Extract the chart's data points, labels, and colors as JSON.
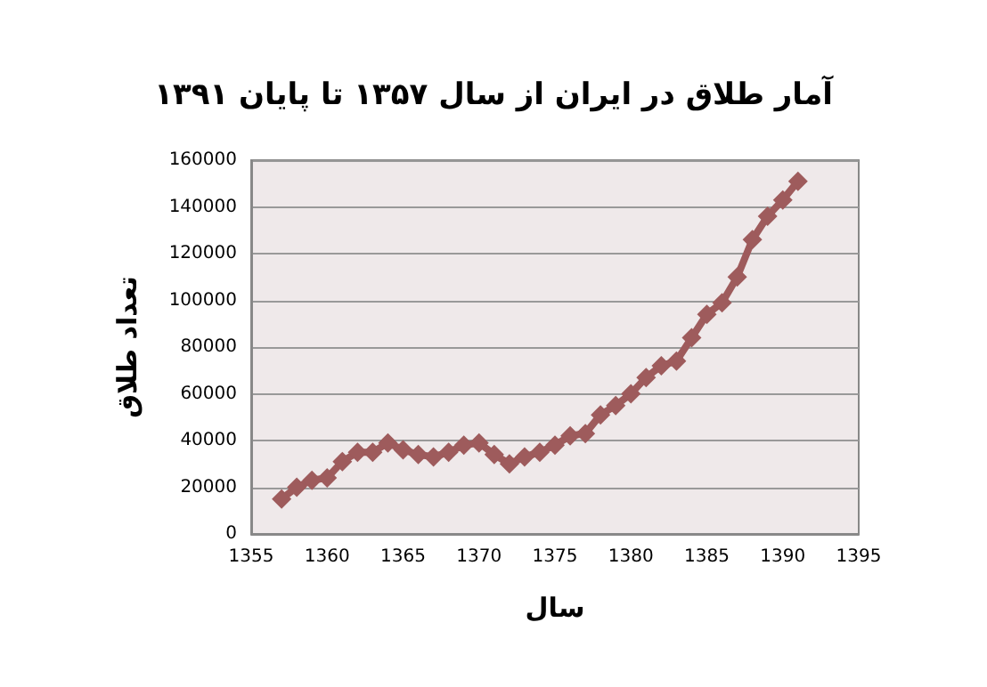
{
  "chart_data": {
    "type": "line",
    "title": "آمار طلاق در ایران از سال ۱۳۵۷ تا پایان ۱۳۹۱",
    "xlabel": "سال",
    "ylabel": "تعداد طلاق",
    "x": [
      1357,
      1358,
      1359,
      1360,
      1361,
      1362,
      1363,
      1364,
      1365,
      1366,
      1367,
      1368,
      1369,
      1370,
      1371,
      1372,
      1373,
      1374,
      1375,
      1376,
      1377,
      1378,
      1379,
      1380,
      1381,
      1382,
      1383,
      1384,
      1385,
      1386,
      1387,
      1388,
      1389,
      1390,
      1391
    ],
    "series": [
      {
        "color": "#9e5b5c",
        "values": [
          15000,
          20000,
          23000,
          24000,
          31000,
          35000,
          35000,
          39000,
          36000,
          34000,
          33000,
          35000,
          38000,
          39000,
          34000,
          30000,
          33000,
          35000,
          38000,
          42000,
          43000,
          51000,
          55000,
          60000,
          67000,
          72000,
          74000,
          84000,
          94000,
          99000,
          110000,
          126000,
          136000,
          143000,
          151000
        ]
      }
    ],
    "xlim": [
      1355,
      1395
    ],
    "xticks": [
      1355,
      1360,
      1365,
      1370,
      1375,
      1380,
      1385,
      1390,
      1395
    ],
    "ylim": [
      0,
      160000
    ],
    "yticks": [
      0,
      20000,
      40000,
      60000,
      80000,
      100000,
      120000,
      140000,
      160000
    ],
    "grid": "y",
    "marker": "diamond",
    "line_style": "solid"
  }
}
